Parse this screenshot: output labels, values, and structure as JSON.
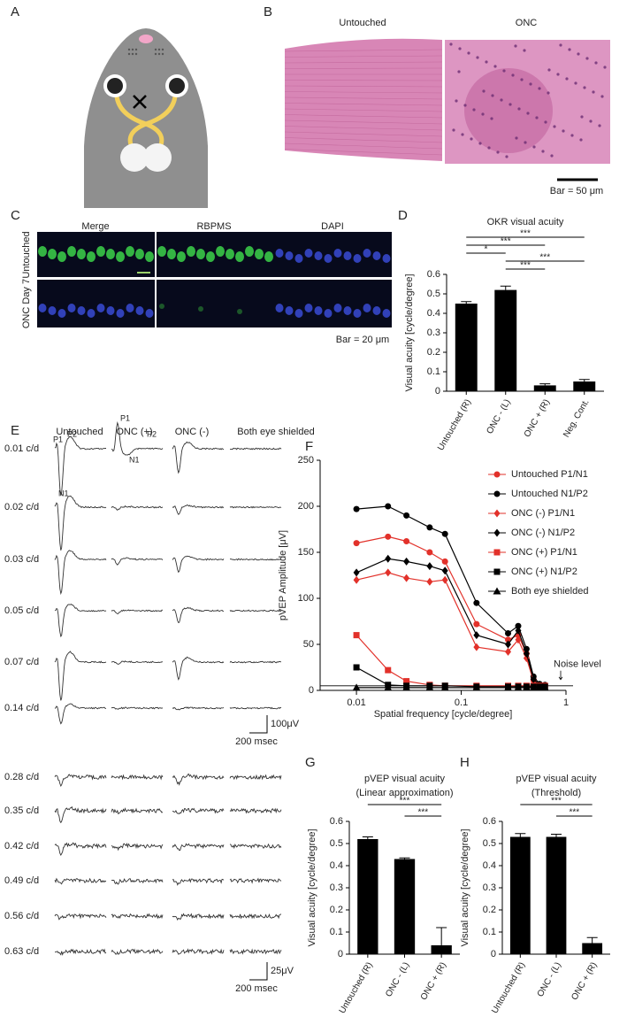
{
  "panels": {
    "A": {
      "label": "A"
    },
    "B": {
      "label": "B",
      "titles": [
        "Untouched",
        "ONC"
      ],
      "scale": "Bar = 50 μm"
    },
    "C": {
      "label": "C",
      "columns": [
        "Merge",
        "RBPMS",
        "DAPI"
      ],
      "rows": [
        "Untouched",
        "ONC Day 7"
      ],
      "scale": "Bar = 20 μm"
    },
    "E": {
      "label": "E",
      "columns": [
        "Untouched",
        "ONC (+)",
        "ONC (-)",
        "Both eye shielded"
      ],
      "rows": [
        "0.01 c/d",
        "0.02 c/d",
        "0.03 c/d",
        "0.05 c/d",
        "0.07 c/d",
        "0.14 c/d",
        "0.28 c/d",
        "0.35 c/d",
        "0.42 c/d",
        "0.49 c/d",
        "0.56 c/d",
        "0.63 c/d"
      ],
      "peaks_untouched": [
        "P1",
        "P2",
        "N1"
      ],
      "peaks_onc_plus": [
        "P1",
        "P2",
        "N1"
      ],
      "scale_top": [
        "100μV",
        "200 msec"
      ],
      "scale_bottom": [
        "25μV",
        "200 msec"
      ]
    }
  },
  "chart_data": [
    {
      "panel": "D",
      "type": "bar",
      "title": "OKR visual acuity",
      "ylabel": "Visual acuity [cycle/degree]",
      "categories": [
        "Untouched (R)",
        "ONC - (L)",
        "ONC + (R)",
        "Neg. Cont."
      ],
      "values": [
        0.45,
        0.52,
        0.03,
        0.05
      ],
      "errors": [
        0.01,
        0.02,
        0.008,
        0.01
      ],
      "color": "#000000",
      "ylim": [
        0,
        0.6
      ],
      "yticks": [
        0,
        0.1,
        0.2,
        0.3,
        0.4,
        0.5,
        0.6
      ],
      "brackets": [
        {
          "pair": [
            0,
            3
          ],
          "label": "***"
        },
        {
          "pair": [
            0,
            2
          ],
          "label": "***"
        },
        {
          "pair": [
            0,
            1
          ],
          "label": "*"
        },
        {
          "pair": [
            1,
            3
          ],
          "label": "***"
        },
        {
          "pair": [
            1,
            2
          ],
          "label": "***"
        }
      ]
    },
    {
      "panel": "F",
      "type": "line",
      "xlabel": "Spatial frequency [cycle/degree]",
      "ylabel": "pVEP Amplitude [μV]",
      "x": [
        0.01,
        0.02,
        0.03,
        0.05,
        0.07,
        0.14,
        0.28,
        0.35,
        0.42,
        0.49,
        0.56,
        0.63
      ],
      "log_x": true,
      "xlim": [
        0.0045,
        1
      ],
      "xticks": [
        0.01,
        0.1,
        1
      ],
      "ylim": [
        0,
        250
      ],
      "yticks": [
        0,
        50,
        100,
        150,
        200,
        250
      ],
      "legend": "upper right",
      "series": [
        {
          "name": "Untouched P1/N1",
          "color": "#e2312a",
          "marker": "circle",
          "values": [
            160,
            167,
            162,
            150,
            140,
            72,
            55,
            60,
            40,
            12,
            6,
            5
          ]
        },
        {
          "name": "Untouched N1/P2",
          "color": "#000000",
          "marker": "circle",
          "values": [
            197,
            200,
            190,
            177,
            170,
            95,
            62,
            70,
            45,
            15,
            7,
            6
          ]
        },
        {
          "name": "ONC (-) P1/N1",
          "color": "#e2312a",
          "marker": "diamond",
          "values": [
            120,
            128,
            122,
            118,
            120,
            47,
            42,
            55,
            35,
            10,
            5,
            5
          ]
        },
        {
          "name": "ONC (-) N1/P2",
          "color": "#000000",
          "marker": "diamond",
          "values": [
            128,
            143,
            140,
            135,
            130,
            60,
            50,
            65,
            40,
            12,
            6,
            5
          ]
        },
        {
          "name": "ONC (+) P1/N1",
          "color": "#e2312a",
          "marker": "square",
          "values": [
            60,
            22,
            10,
            6,
            5,
            5,
            5,
            5,
            5,
            5,
            5,
            5
          ]
        },
        {
          "name": "ONC (+) N1/P2",
          "color": "#000000",
          "marker": "square",
          "values": [
            25,
            6,
            5,
            5,
            5,
            4,
            4,
            4,
            4,
            4,
            4,
            4
          ]
        },
        {
          "name": "Both eye shielded",
          "color": "#000000",
          "marker": "triangle",
          "values": [
            3,
            3,
            3,
            3,
            3,
            3,
            3,
            3,
            3,
            3,
            3,
            3
          ]
        }
      ],
      "noise_level": 5,
      "noise_label": "Noise level"
    },
    {
      "panel": "G",
      "type": "bar",
      "title": "pVEP visual acuity",
      "subtitle": "(Linear approximation)",
      "ylabel": "Visual acuity [cycle/degree]",
      "categories": [
        "Untouched (R)",
        "ONC - (L)",
        "ONC + (R)"
      ],
      "values": [
        0.52,
        0.43,
        0.04
      ],
      "errors": [
        0.01,
        0.005,
        0.08
      ],
      "color": "#000000",
      "ylim": [
        0,
        0.6
      ],
      "yticks": [
        0,
        0.1,
        0.2,
        0.3,
        0.4,
        0.5,
        0.6
      ],
      "brackets": [
        {
          "pair": [
            0,
            2
          ],
          "label": "***"
        },
        {
          "pair": [
            1,
            2
          ],
          "label": "***"
        }
      ]
    },
    {
      "panel": "H",
      "type": "bar",
      "title": "pVEP visual acuity",
      "subtitle": "(Threshold)",
      "ylabel": "Visual acuity [cycle/degree]",
      "categories": [
        "Untouched (R)",
        "ONC - (L)",
        "ONC + (R)"
      ],
      "values": [
        0.53,
        0.53,
        0.05
      ],
      "errors": [
        0.015,
        0.012,
        0.025
      ],
      "color": "#000000",
      "ylim": [
        0,
        0.6
      ],
      "yticks": [
        0,
        0.1,
        0.2,
        0.3,
        0.4,
        0.5,
        0.6
      ],
      "brackets": [
        {
          "pair": [
            0,
            2
          ],
          "label": "***"
        },
        {
          "pair": [
            1,
            2
          ],
          "label": "***"
        }
      ]
    }
  ]
}
